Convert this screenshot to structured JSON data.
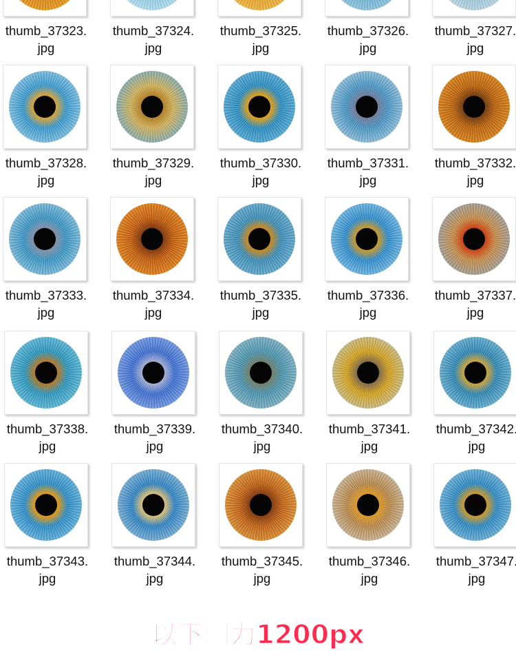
{
  "colors": {
    "filename_text": "#111111",
    "caption_text": "#ff2b4f",
    "pupil": "#050505"
  },
  "files": [
    {
      "name": "thumb_37323.jpg",
      "iris_colors": [
        "#3c96c8",
        "#d8891a",
        "#f0a020"
      ]
    },
    {
      "name": "thumb_37324.jpg",
      "iris_colors": [
        "#5ab6de",
        "#8fd0ea",
        "#bfe4f2"
      ]
    },
    {
      "name": "thumb_37325.jpg",
      "iris_colors": [
        "#d5951c",
        "#e8a529",
        "#f3bb48"
      ]
    },
    {
      "name": "thumb_37326.jpg",
      "iris_colors": [
        "#3a9ac8",
        "#6cb6d9",
        "#9acbe2"
      ]
    },
    {
      "name": "thumb_37327.jpg",
      "iris_colors": [
        "#68b2d6",
        "#9cc9dc",
        "#c3dde8"
      ]
    },
    {
      "name": "thumb_37328.jpg",
      "iris_colors": [
        "#d7a53a",
        "#3a9bd0",
        "#8cc8e6"
      ]
    },
    {
      "name": "thumb_37329.jpg",
      "iris_colors": [
        "#b98424",
        "#d3b45c",
        "#79aec2"
      ]
    },
    {
      "name": "thumb_37330.jpg",
      "iris_colors": [
        "#e0a019",
        "#2b8fc4",
        "#5fb0d8"
      ]
    },
    {
      "name": "thumb_37331.jpg",
      "iris_colors": [
        "#6d7ea0",
        "#4b98c8",
        "#9ec7e0"
      ]
    },
    {
      "name": "thumb_37332.jpg",
      "iris_colors": [
        "#7a3c06",
        "#c0650c",
        "#e08a1e"
      ]
    },
    {
      "name": "thumb_37333.jpg",
      "iris_colors": [
        "#7c93ad",
        "#3b97c7",
        "#8bc3df"
      ]
    },
    {
      "name": "thumb_37334.jpg",
      "iris_colors": [
        "#8a3705",
        "#c8600e",
        "#e78a22"
      ]
    },
    {
      "name": "thumb_37335.jpg",
      "iris_colors": [
        "#c58a1f",
        "#3d8fba",
        "#6db0d2"
      ]
    },
    {
      "name": "thumb_37336.jpg",
      "iris_colors": [
        "#c79a2c",
        "#2f8ed0",
        "#7dbfe6"
      ]
    },
    {
      "name": "thumb_37337.jpg",
      "iris_colors": [
        "#d3430d",
        "#c88f4b",
        "#9ea3a6"
      ]
    },
    {
      "name": "thumb_37338.jpg",
      "iris_colors": [
        "#b07a2a",
        "#2e98bf",
        "#66c0de"
      ]
    },
    {
      "name": "thumb_37339.jpg",
      "iris_colors": [
        "#9faed8",
        "#3f6fd3",
        "#7ca2e6"
      ]
    },
    {
      "name": "thumb_37340.jpg",
      "iris_colors": [
        "#6b8270",
        "#4c96b2",
        "#8ab8c8"
      ]
    },
    {
      "name": "thumb_37341.jpg",
      "iris_colors": [
        "#8a6e40",
        "#d7a51e",
        "#c8c19a"
      ]
    },
    {
      "name": "thumb_37342.jpg",
      "iris_colors": [
        "#c9a43a",
        "#2f88b6",
        "#72b7d6"
      ]
    },
    {
      "name": "thumb_37343.jpg",
      "iris_colors": [
        "#e19a16",
        "#2e8fca",
        "#6cb9e1"
      ]
    },
    {
      "name": "thumb_37344.jpg",
      "iris_colors": [
        "#d7c07a",
        "#2f85c6",
        "#87b8d8"
      ]
    },
    {
      "name": "thumb_37345.jpg",
      "iris_colors": [
        "#8a3a06",
        "#c46416",
        "#e39a3a"
      ]
    },
    {
      "name": "thumb_37346.jpg",
      "iris_colors": [
        "#e09a22",
        "#bb8a4c",
        "#cdbda4"
      ]
    },
    {
      "name": "thumb_37347.jpg",
      "iris_colors": [
        "#c99a2a",
        "#2f8bc6",
        "#76b8da"
      ]
    }
  ],
  "caption": "以下图为1200px"
}
